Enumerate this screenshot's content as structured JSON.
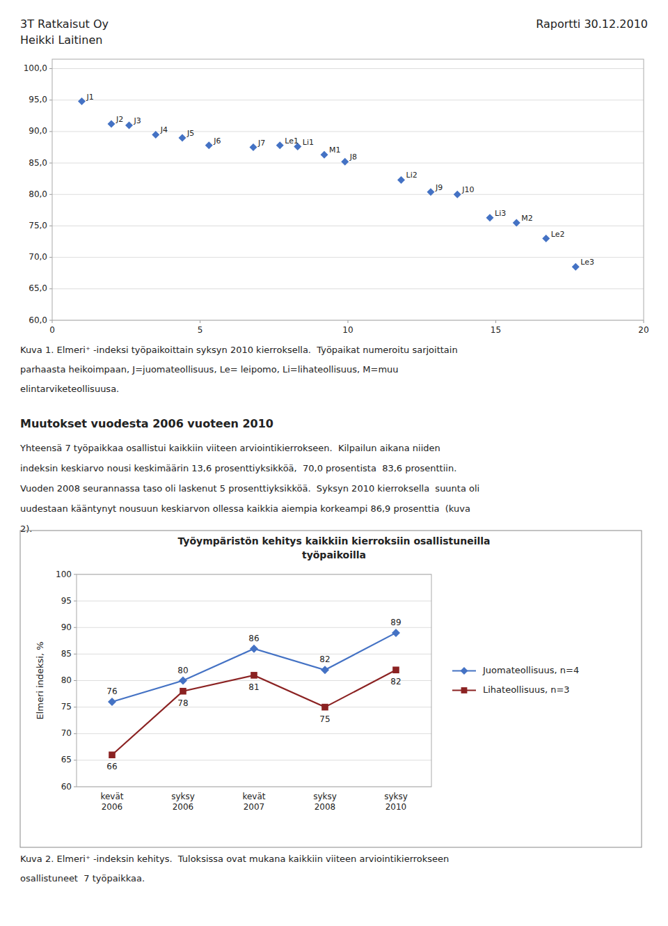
{
  "header": {
    "left": [
      "3T Ratkaisut Oy",
      "Heikki Laitinen"
    ],
    "right": "Raportti 30.12.2010"
  },
  "caption_1": [
    "Kuva 1. Elmeri⁺ -indeksi työpaikoittain syksyn 2010 kierroksella.  Työpaikat numeroitu sarjoittain",
    "parhaasta heikoimpaan, J=juomateollisuus, Le= leipomo, Li=lihateollisuus, M=muu",
    "elintarviketeollisuusa."
  ],
  "section_title": "Muutokset vuodesta 2006 vuoteen 2010",
  "body": [
    "Yhteensä 7 työpaikkaa osallistui kaikkiin viiteen arviointikierrokseen.  Kilpailun aikana niiden",
    "indeksin keskiarvo nousi keskimäärin 13,6 prosenttiyksikköä,  70,0 prosentista  83,6 prosenttiin.",
    "Vuoden 2008 seurannassa taso oli laskenut 5 prosenttiyksikköä.  Syksyn 2010 kierroksella  suunta oli",
    "uudestaan kääntynyt nousuun keskiarvon ollessa kaikkia aiempia korkeampi 86,9 prosenttia  (kuva",
    "2)."
  ],
  "caption_2": [
    "Kuva 2. Elmeri⁺ -indeksin kehitys.  Tuloksissa ovat mukana kaikkiin viiteen arviointikierrokseen",
    "osallistuneet  7 työpaikkaa."
  ],
  "chart_data": [
    {
      "type": "scatter",
      "x": [
        1,
        2,
        2.6,
        3.5,
        4.4,
        5.3,
        6.8,
        7.7,
        8.3,
        9.2,
        9.9,
        11.8,
        12.8,
        13.7,
        14.8,
        15.7,
        16.7,
        17.7
      ],
      "values": [
        94.8,
        91.2,
        91.0,
        89.5,
        89.0,
        87.8,
        87.5,
        87.8,
        87.6,
        86.3,
        85.2,
        82.3,
        80.4,
        80.0,
        76.3,
        75.5,
        73.0,
        68.5
      ],
      "annotations": [
        "J1",
        "J2",
        "J3",
        "J4",
        "J5",
        "J6",
        "J7",
        "Le1",
        "Li1",
        "M1",
        "J8",
        "Li2",
        "J9",
        "J10",
        "Li3",
        "M2",
        "Le2",
        "Le3"
      ],
      "color": "#4472C4",
      "marker": "diamond",
      "xlim": [
        0,
        20
      ],
      "ylim": [
        60.0,
        101.5
      ],
      "xticks": [
        0,
        5,
        10,
        15,
        20
      ],
      "yticks": [
        {
          "value": 60.0,
          "label": "60,0"
        },
        {
          "value": 65.0,
          "label": "65,0"
        },
        {
          "value": 70.0,
          "label": "70,0"
        },
        {
          "value": 75.0,
          "label": "75,0"
        },
        {
          "value": 80.0,
          "label": "80,0"
        },
        {
          "value": 85.0,
          "label": "85,0"
        },
        {
          "value": 90.0,
          "label": "90,0"
        },
        {
          "value": 95.0,
          "label": "95,0"
        },
        {
          "value": 100.0,
          "label": "100,0"
        }
      ],
      "grid": "y"
    },
    {
      "type": "line",
      "title": [
        "Työympäristön kehitys kaikkiin kierroksiin osallistuneilla",
        "työpaikoilla"
      ],
      "categories": [
        "kevät\n2006",
        "syksy\n2006",
        "kevät\n2007",
        "syksy\n2008",
        "syksy\n2010"
      ],
      "series": [
        {
          "name": "Juomateollisuus, n=4",
          "color": "#4472C4",
          "marker": "diamond",
          "values": [
            76,
            80,
            86,
            82,
            89
          ]
        },
        {
          "name": "Lihateollisuus, n=3",
          "color": "#8B2222",
          "marker": "square",
          "values": [
            66,
            78,
            81,
            75,
            82
          ]
        }
      ],
      "ylabel": "Elmeri indeksi, %",
      "ylim": [
        60,
        100
      ],
      "yticks": [
        60,
        65,
        70,
        75,
        80,
        85,
        90,
        95,
        100
      ],
      "grid": "y",
      "legend": "right",
      "data_labels": true
    }
  ]
}
